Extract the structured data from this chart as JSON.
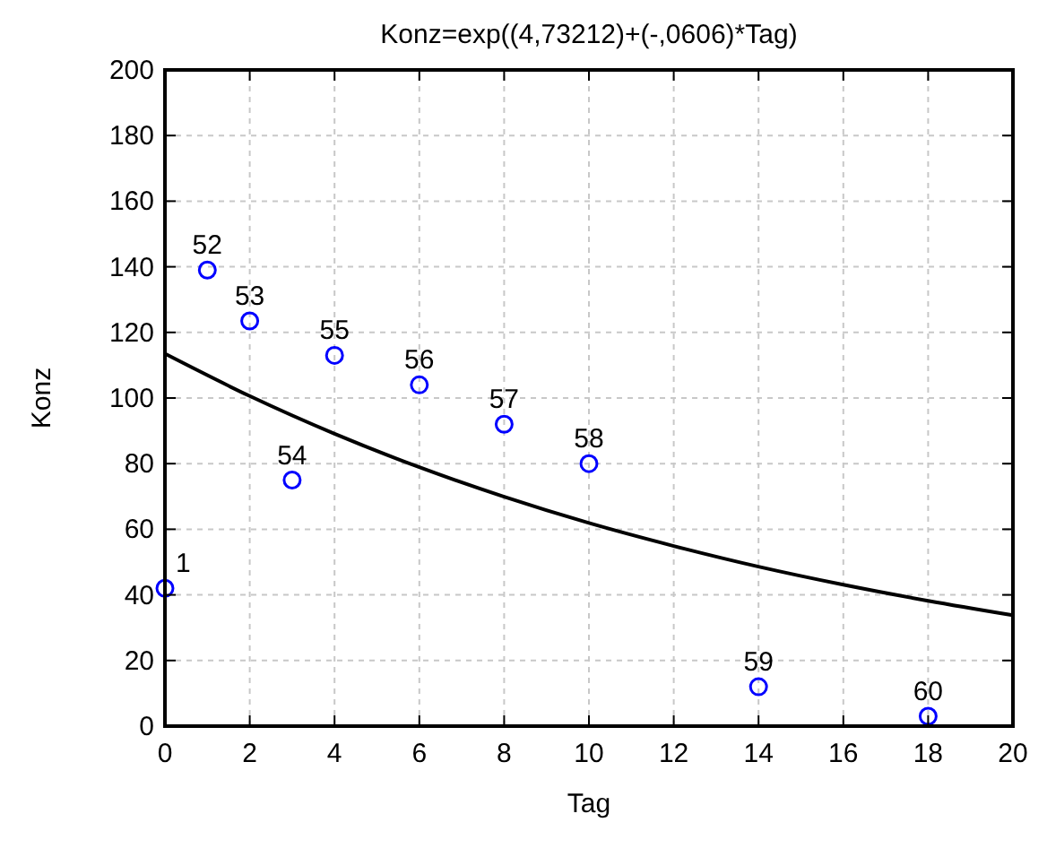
{
  "chart_data": {
    "type": "scatter",
    "title": "Konz=exp((4,73212)+(-,0606)*Tag)",
    "xlabel": "Tag",
    "ylabel": "Konz",
    "xlim": [
      0,
      20
    ],
    "xticks": [
      0,
      2,
      4,
      6,
      8,
      10,
      12,
      14,
      16,
      18,
      20
    ],
    "ylim": [
      0,
      200
    ],
    "yticks": [
      0,
      20,
      40,
      60,
      80,
      100,
      120,
      140,
      160,
      180,
      200
    ],
    "grid": true,
    "marker": "circle",
    "series": [
      {
        "color": "#0000ff",
        "x": [
          0,
          1,
          2,
          3,
          4,
          6,
          8,
          10,
          14,
          18
        ],
        "values": [
          42,
          139,
          123.5,
          75,
          113,
          104,
          92,
          80,
          12,
          3
        ]
      },
      {
        "type": "line",
        "color": "#000000",
        "marker": "none",
        "x": [
          0,
          2,
          4,
          6,
          8,
          10,
          12,
          14,
          16,
          18,
          20
        ],
        "values": [
          113.5,
          100.6,
          89.1,
          78.9,
          69.9,
          61.9,
          54.9,
          48.6,
          43.1,
          38.2,
          33.8
        ]
      }
    ],
    "annotations": [
      {
        "text": "1",
        "x": 0,
        "y": 42
      },
      {
        "text": "52",
        "x": 1,
        "y": 139
      },
      {
        "text": "53",
        "x": 2,
        "y": 123.5
      },
      {
        "text": "54",
        "x": 3,
        "y": 75
      },
      {
        "text": "55",
        "x": 4,
        "y": 113
      },
      {
        "text": "56",
        "x": 6,
        "y": 104
      },
      {
        "text": "57",
        "x": 8,
        "y": 92
      },
      {
        "text": "58",
        "x": 10,
        "y": 80
      },
      {
        "text": "59",
        "x": 14,
        "y": 12
      },
      {
        "text": "60",
        "x": 18,
        "y": 3
      }
    ]
  }
}
